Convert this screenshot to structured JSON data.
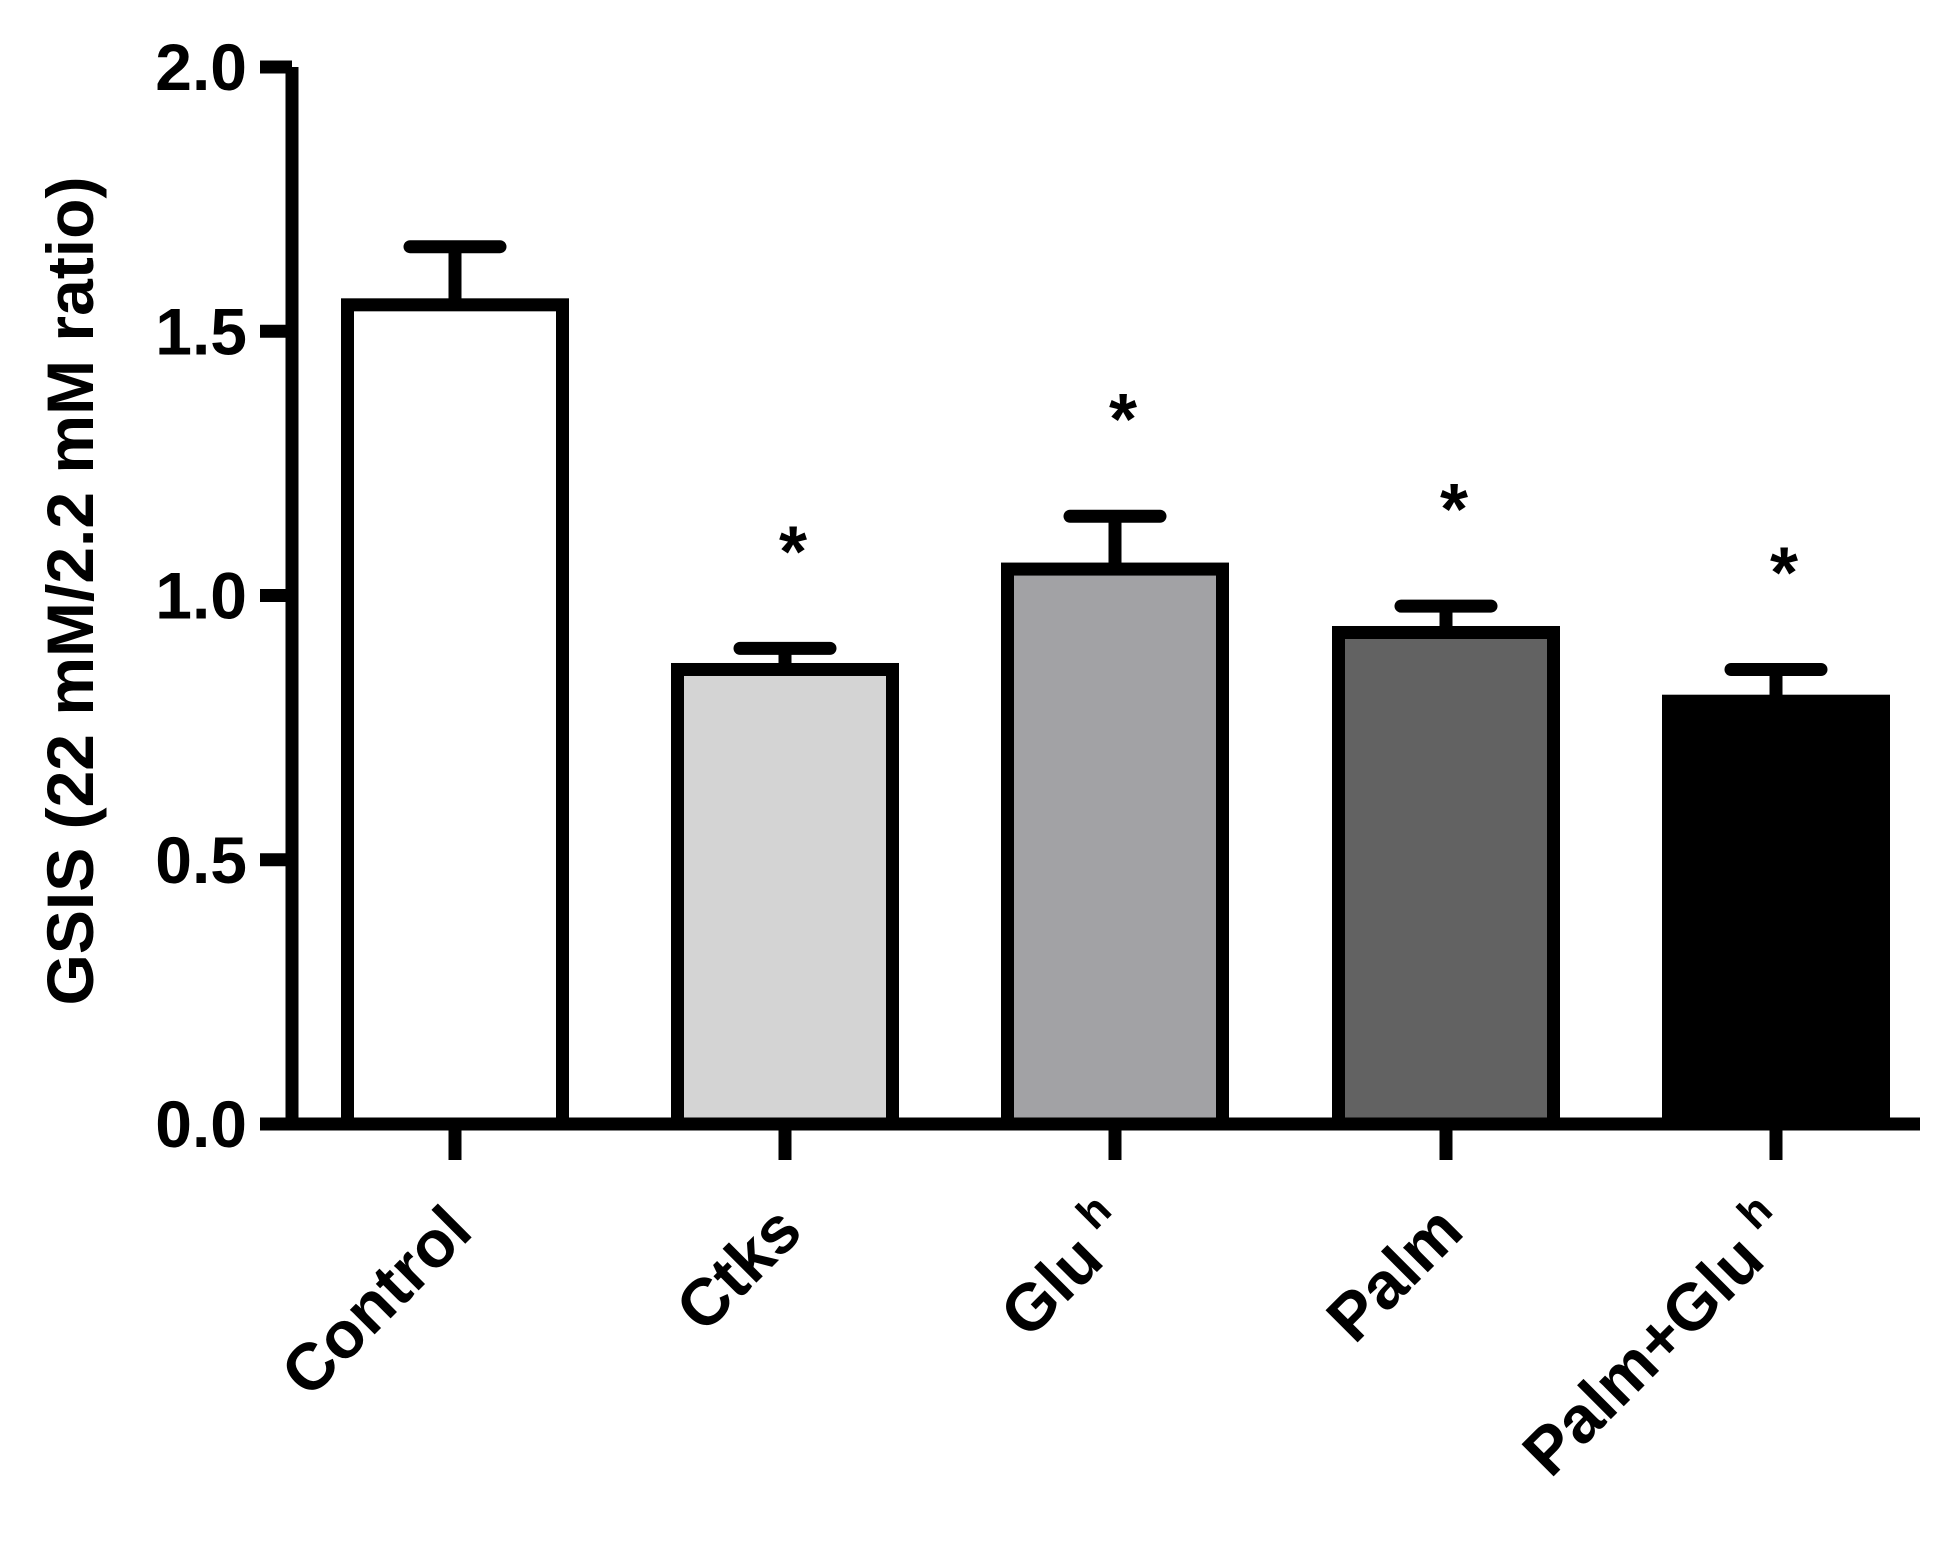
{
  "chart_data": {
    "type": "bar",
    "title": "",
    "xlabel": "",
    "ylabel": "GSIS (22 mM/2.2 mM ratio)",
    "ylim": [
      0,
      2.0
    ],
    "yticks": [
      "0.0",
      "0.5",
      "1.0",
      "1.5",
      "2.0"
    ],
    "grid": false,
    "legend": "none",
    "bars": [
      {
        "category": "Control",
        "superscript": "",
        "value": 1.55,
        "error": 0.11,
        "significance": "",
        "color": "#ffffff"
      },
      {
        "category": "Ctks",
        "superscript": "",
        "value": 0.86,
        "error": 0.04,
        "significance": "*",
        "color": "#d4d4d4"
      },
      {
        "category": "Glu",
        "superscript": "h",
        "value": 1.05,
        "error": 0.1,
        "significance": "*",
        "color": "#a2a2a5"
      },
      {
        "category": "Palm",
        "superscript": "",
        "value": 0.93,
        "error": 0.05,
        "significance": "*",
        "color": "#626262"
      },
      {
        "category": "Palm+Glu",
        "superscript": "h",
        "value": 0.8,
        "error": 0.06,
        "significance": "*",
        "color": "#000000"
      }
    ]
  }
}
